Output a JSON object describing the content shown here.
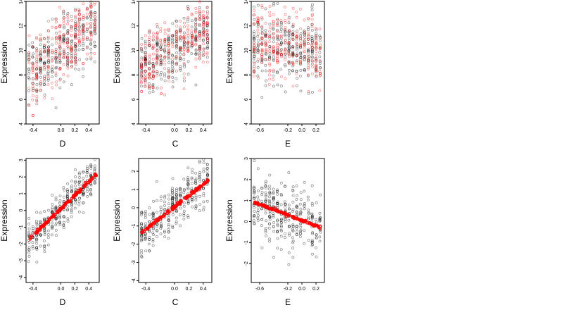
{
  "chart_data": [
    {
      "type": "scatter",
      "xlabel": "D",
      "ylabel": "Expression",
      "xticks": [
        "-0.4",
        "0.0",
        "0.2",
        "0.4"
      ],
      "xtick_values": [
        -0.4,
        0.0,
        0.2,
        0.4
      ],
      "yticks": [
        "4",
        "6",
        "8",
        "10",
        "12",
        "14"
      ],
      "ytick_values": [
        4,
        6,
        8,
        10,
        12,
        14
      ],
      "xlim": [
        -0.5,
        0.55
      ],
      "ylim": [
        4,
        14
      ],
      "series": [
        {
          "color": "#000000",
          "pattern": "observed expression rising with D",
          "slope": 4.0,
          "intercept": 10.0,
          "spread": 1.3,
          "n": 300
        },
        {
          "color": "#ff0000",
          "pattern": "fitted expression rising with D",
          "slope": 4.2,
          "intercept": 10.2,
          "spread": 1.5,
          "n": 260
        }
      ]
    },
    {
      "type": "scatter",
      "xlabel": "C",
      "ylabel": "Expression",
      "xticks": [
        "-0.4",
        "0.0",
        "0.2",
        "0.4"
      ],
      "xtick_values": [
        -0.4,
        0.0,
        0.2,
        0.4
      ],
      "yticks": [
        "4",
        "6",
        "8",
        "10",
        "12",
        "14"
      ],
      "ytick_values": [
        4,
        6,
        8,
        10,
        12,
        14
      ],
      "xlim": [
        -0.5,
        0.52
      ],
      "ylim": [
        4,
        14
      ],
      "series": [
        {
          "color": "#000000",
          "pattern": "observed expression rising with C",
          "slope": 3.0,
          "intercept": 10.0,
          "spread": 1.3,
          "n": 300
        },
        {
          "color": "#ff0000",
          "pattern": "fitted expression rising with C",
          "slope": 3.2,
          "intercept": 10.2,
          "spread": 1.2,
          "n": 260
        }
      ]
    },
    {
      "type": "scatter",
      "xlabel": "E",
      "ylabel": "Expression",
      "xticks": [
        "-0.6",
        "-0.2",
        "0.0",
        "0.2"
      ],
      "xtick_values": [
        -0.6,
        -0.2,
        0.0,
        0.2
      ],
      "yticks": [
        "4",
        "6",
        "8",
        "10",
        "12",
        "14"
      ],
      "ytick_values": [
        4,
        6,
        8,
        10,
        12,
        14
      ],
      "xlim": [
        -0.72,
        0.32
      ],
      "ylim": [
        4,
        14
      ],
      "series": [
        {
          "color": "#000000",
          "pattern": "observed expression, weak negative trend in E",
          "slope": -0.5,
          "intercept": 10.0,
          "spread": 1.4,
          "n": 300
        },
        {
          "color": "#ff0000",
          "pattern": "fitted expression, weak trend in E",
          "slope": -0.3,
          "intercept": 10.3,
          "spread": 1.5,
          "n": 260
        }
      ]
    },
    {
      "type": "scatter",
      "xlabel": "D",
      "ylabel": "Expression",
      "xticks": [
        "-0.4",
        "0.0",
        "0.2",
        "0.4"
      ],
      "xtick_values": [
        -0.4,
        0.0,
        0.2,
        0.4
      ],
      "yticks": [
        "-4",
        "-3",
        "-2",
        "-1",
        "0",
        "1",
        "2",
        "3"
      ],
      "ytick_values": [
        -4,
        -3,
        -2,
        -1,
        0,
        1,
        2,
        3
      ],
      "xlim": [
        -0.5,
        0.55
      ],
      "ylim": [
        -4.3,
        3.1
      ],
      "series": [
        {
          "color": "#000000",
          "pattern": "residual expression rising with D",
          "slope": 4.0,
          "intercept": 0.1,
          "spread": 0.6,
          "n": 320
        },
        {
          "color": "#ff0000",
          "pattern": "fitted line",
          "slope": 4.0,
          "intercept": 0.1,
          "spread": 0.04,
          "n": 130
        }
      ]
    },
    {
      "type": "scatter",
      "xlabel": "C",
      "ylabel": "Expression",
      "xticks": [
        "-0.4",
        "0.0",
        "0.2",
        "0.4"
      ],
      "xtick_values": [
        -0.4,
        0.0,
        0.2,
        0.4
      ],
      "yticks": [
        "-4",
        "-3",
        "-2",
        "-1",
        "0",
        "1",
        "2"
      ],
      "ytick_values": [
        -4,
        -3,
        -2,
        -1,
        0,
        1,
        2
      ],
      "xlim": [
        -0.5,
        0.52
      ],
      "ylim": [
        -4.1,
        2.7
      ],
      "series": [
        {
          "color": "#000000",
          "pattern": "residual expression rising with C",
          "slope": 3.1,
          "intercept": 0.05,
          "spread": 0.65,
          "n": 320
        },
        {
          "color": "#ff0000",
          "pattern": "fitted line",
          "slope": 3.1,
          "intercept": 0.05,
          "spread": 0.04,
          "n": 130
        }
      ]
    },
    {
      "type": "scatter",
      "xlabel": "E",
      "ylabel": "Expression",
      "xticks": [
        "-0.6",
        "-0.2",
        "0.0",
        "0.2"
      ],
      "xtick_values": [
        -0.6,
        -0.2,
        0.0,
        0.2
      ],
      "yticks": [
        "-2",
        "-1",
        "0",
        "1",
        "2",
        "3"
      ],
      "ytick_values": [
        -2,
        -1,
        0,
        1,
        2,
        3
      ],
      "xlim": [
        -0.72,
        0.32
      ],
      "ylim": [
        -2.9,
        3.0
      ],
      "series": [
        {
          "color": "#000000",
          "pattern": "residual expression falling with E",
          "slope": -1.3,
          "intercept": 0.05,
          "spread": 0.75,
          "n": 320
        },
        {
          "color": "#ff0000",
          "pattern": "fitted line",
          "slope": -1.3,
          "intercept": 0.05,
          "spread": 0.03,
          "n": 130
        }
      ]
    }
  ]
}
